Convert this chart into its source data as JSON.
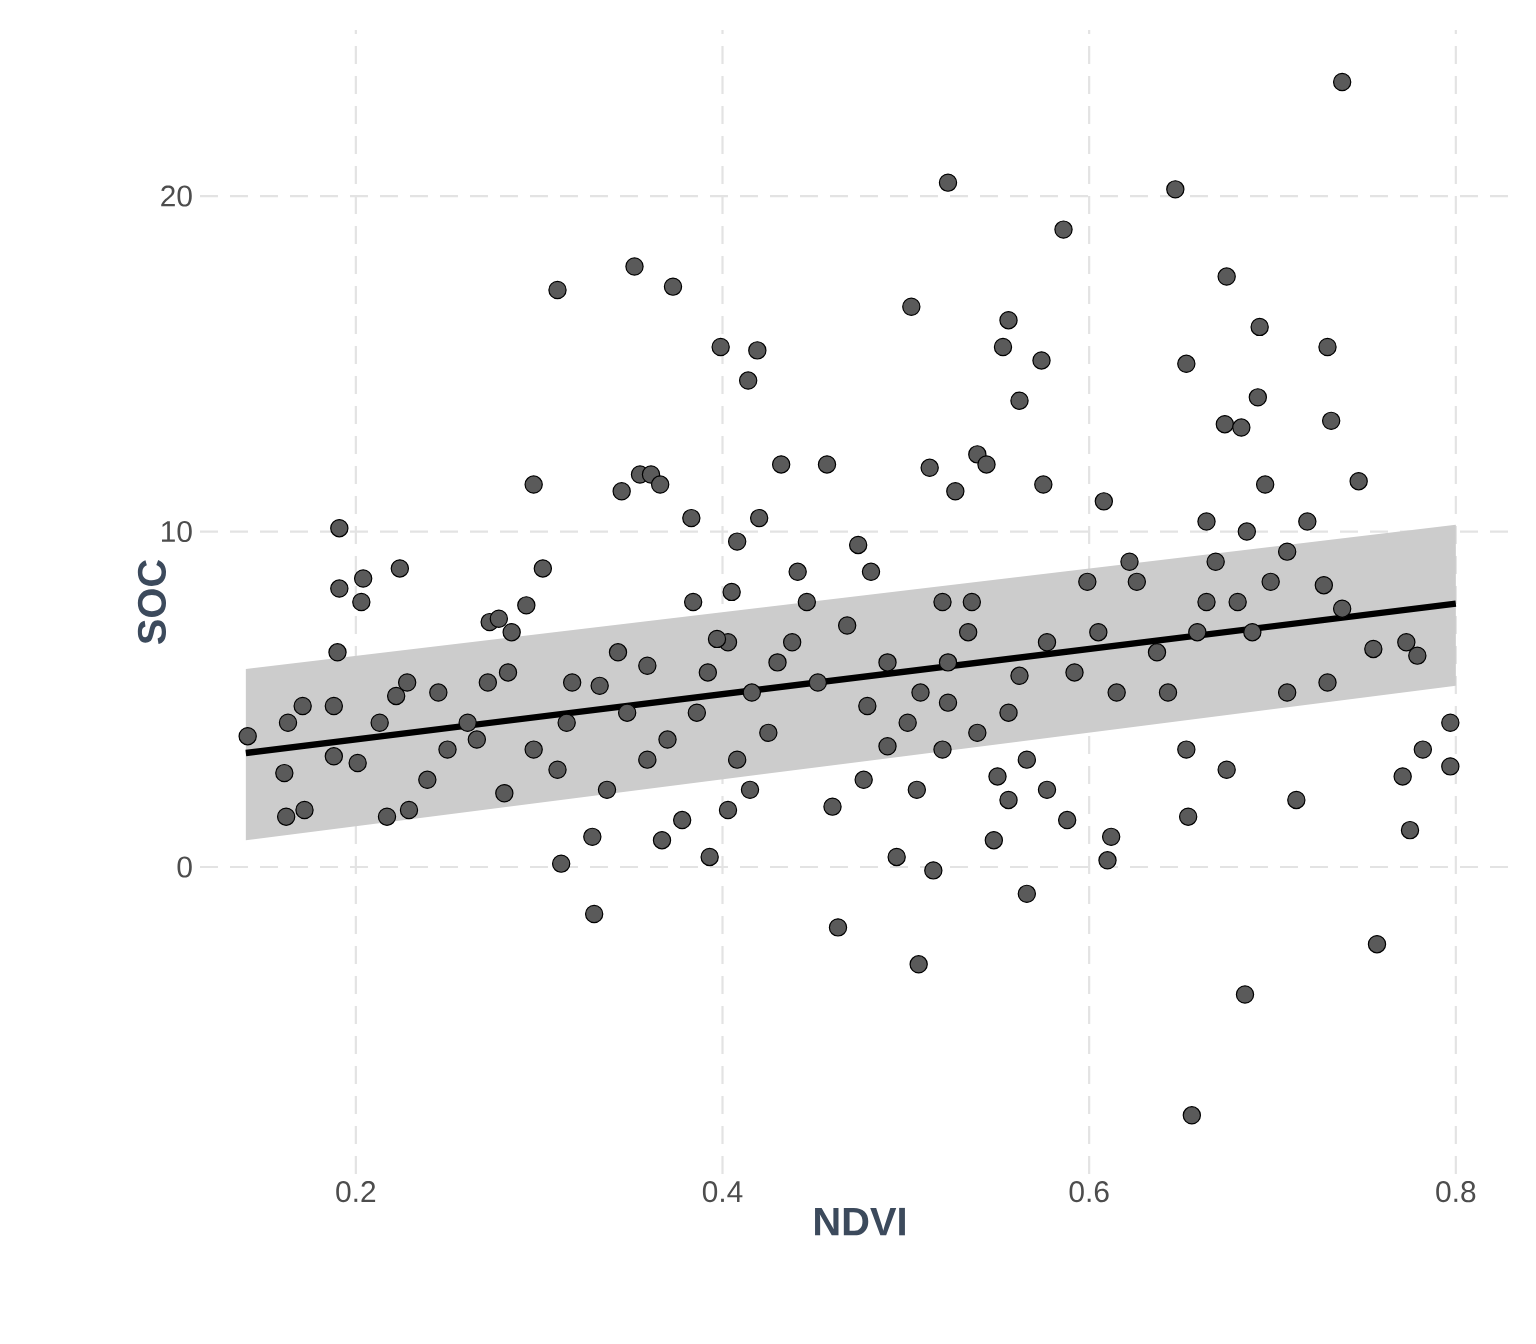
{
  "chart_data": {
    "type": "scatter",
    "xlabel": "NDVI",
    "ylabel": "SOC",
    "xlim": [
      0.115,
      0.835
    ],
    "ylim": [
      -9.15,
      24.95
    ],
    "xticks": [
      0.2,
      0.4,
      0.6,
      0.8
    ],
    "yticks": [
      0,
      10,
      20
    ],
    "grid": true,
    "series": [
      {
        "type": "scatter",
        "color": "#5a5a5a",
        "marker": "circle",
        "x": [
          0.31,
          0.352,
          0.373,
          0.399,
          0.419,
          0.414,
          0.297,
          0.345,
          0.355,
          0.361,
          0.366,
          0.383,
          0.42,
          0.523,
          0.503,
          0.586,
          0.647,
          0.738,
          0.556,
          0.553,
          0.457,
          0.432,
          0.513,
          0.539,
          0.544,
          0.527,
          0.574,
          0.562,
          0.575,
          0.675,
          0.693,
          0.73,
          0.653,
          0.674,
          0.683,
          0.692,
          0.608,
          0.664,
          0.696,
          0.732,
          0.747,
          0.33,
          0.463,
          0.507,
          0.566,
          0.656,
          0.685,
          0.757,
          0.312,
          0.393,
          0.495,
          0.515,
          0.61,
          0.548,
          0.556,
          0.612,
          0.654,
          0.775,
          0.771,
          0.797,
          0.797,
          0.782,
          0.713,
          0.46,
          0.477,
          0.49,
          0.415,
          0.403,
          0.378,
          0.367,
          0.329,
          0.141,
          0.161,
          0.172,
          0.162,
          0.188,
          0.213,
          0.222,
          0.19,
          0.191,
          0.191,
          0.204,
          0.203,
          0.224,
          0.188,
          0.171,
          0.163,
          0.201,
          0.217,
          0.229,
          0.239,
          0.25,
          0.261,
          0.272,
          0.283,
          0.273,
          0.278,
          0.293,
          0.302,
          0.281,
          0.297,
          0.315,
          0.333,
          0.343,
          0.359,
          0.348,
          0.37,
          0.386,
          0.392,
          0.403,
          0.416,
          0.43,
          0.438,
          0.446,
          0.474,
          0.481,
          0.468,
          0.49,
          0.508,
          0.523,
          0.534,
          0.536,
          0.52,
          0.523,
          0.539,
          0.556,
          0.562,
          0.577,
          0.592,
          0.605,
          0.599,
          0.622,
          0.626,
          0.637,
          0.643,
          0.664,
          0.669,
          0.686,
          0.708,
          0.719,
          0.728,
          0.738,
          0.755,
          0.708,
          0.73,
          0.681,
          0.699,
          0.659,
          0.689,
          0.615,
          0.566,
          0.577,
          0.588,
          0.55,
          0.52,
          0.506,
          0.452,
          0.425,
          0.408,
          0.359,
          0.337,
          0.31,
          0.266,
          0.245,
          0.228,
          0.285,
          0.318,
          0.405,
          0.408,
          0.384,
          0.397,
          0.441,
          0.479,
          0.501,
          0.653,
          0.675,
          0.773,
          0.779
        ],
        "values": [
          17.2,
          17.9,
          17.3,
          15.5,
          15.4,
          14.5,
          11.4,
          11.2,
          11.7,
          11.7,
          11.4,
          10.4,
          10.4,
          20.4,
          16.7,
          19.0,
          20.2,
          23.4,
          16.3,
          15.5,
          12.0,
          12.0,
          11.9,
          12.3,
          12.0,
          11.2,
          15.1,
          13.9,
          11.4,
          17.6,
          16.1,
          15.5,
          15.0,
          13.2,
          13.1,
          14.0,
          10.9,
          10.3,
          11.4,
          13.3,
          11.5,
          -1.4,
          -1.8,
          -2.9,
          -0.8,
          -7.4,
          -3.8,
          -2.3,
          0.1,
          0.3,
          0.3,
          -0.1,
          0.2,
          0.8,
          2.0,
          0.9,
          1.5,
          1.1,
          2.7,
          3.0,
          4.3,
          3.5,
          2.0,
          1.8,
          2.6,
          3.6,
          2.3,
          1.7,
          1.4,
          0.8,
          0.9,
          3.9,
          2.8,
          1.7,
          1.5,
          3.3,
          4.3,
          5.1,
          6.4,
          8.3,
          10.1,
          8.6,
          7.9,
          8.9,
          4.8,
          4.8,
          4.3,
          3.1,
          1.5,
          1.7,
          2.6,
          3.5,
          4.3,
          5.5,
          5.8,
          7.3,
          7.4,
          7.8,
          8.9,
          2.2,
          3.5,
          4.3,
          5.4,
          6.4,
          6.0,
          4.6,
          3.8,
          4.6,
          5.8,
          6.7,
          5.2,
          6.1,
          6.7,
          7.9,
          9.6,
          8.8,
          7.2,
          6.1,
          5.2,
          6.1,
          7.0,
          7.9,
          7.9,
          4.9,
          4.0,
          4.6,
          5.7,
          6.7,
          5.8,
          7.0,
          8.5,
          9.1,
          8.5,
          6.4,
          5.2,
          7.9,
          9.1,
          10.0,
          9.4,
          10.3,
          8.4,
          7.7,
          6.5,
          5.2,
          5.5,
          7.9,
          8.5,
          7.0,
          7.0,
          5.2,
          3.2,
          2.3,
          1.4,
          2.7,
          3.5,
          2.3,
          5.5,
          4.0,
          3.2,
          3.2,
          2.3,
          2.9,
          3.8,
          5.2,
          5.5,
          7.0,
          5.5,
          8.2,
          9.7,
          7.9,
          6.8,
          8.8,
          4.8,
          4.3,
          3.5,
          2.9,
          6.7,
          6.3
        ]
      },
      {
        "type": "line",
        "color": "#000000",
        "x": [
          0.14,
          0.8
        ],
        "values": [
          3.4,
          7.85
        ],
        "lower": [
          0.8,
          5.4
        ],
        "upper": [
          5.9,
          10.2
        ]
      }
    ]
  }
}
